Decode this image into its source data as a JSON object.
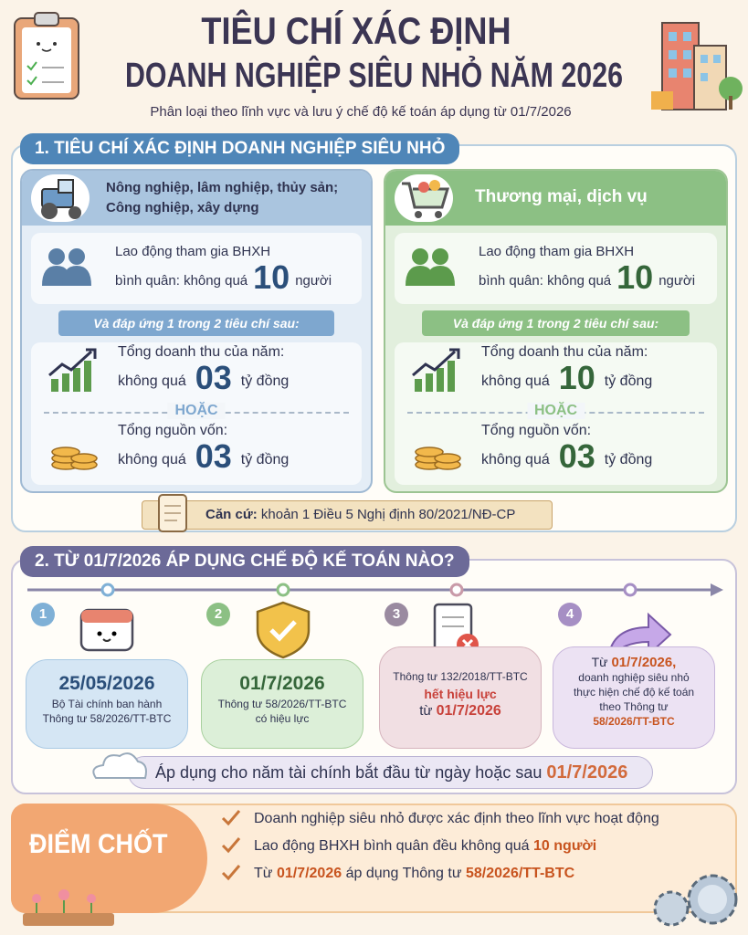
{
  "header": {
    "title_line1": "TIÊU CHÍ XÁC ĐỊNH",
    "title_line2": "DOANH NGHIỆP SIÊU NHỎ NĂM 2026",
    "subtitle": "Phân loại theo lĩnh vực và lưu ý chế độ kế toán áp dụng từ 01/7/2026"
  },
  "section1": {
    "title": "1. TIÊU CHÍ XÁC ĐỊNH DOANH NGHIỆP SIÊU NHỎ",
    "groups": [
      {
        "sector_lines": [
          "Nông nghiệp, lâm nghiệp, thủy sản;",
          "Công nghiệp, xây dựng"
        ],
        "labor_line1": "Lao động tham gia BHXH",
        "labor_prefix": "bình quân: không quá",
        "labor_value": "10",
        "labor_unit": "người",
        "condition": "Và đáp ứng 1 trong 2 tiêu chí sau:",
        "revenue_label": "Tổng doanh thu của năm:",
        "revenue_prefix": "không quá",
        "revenue_value": "03",
        "revenue_unit": "tỷ đồng",
        "or": "HOẶC",
        "capital_label": "Tổng nguồn vốn:",
        "capital_prefix": "không quá",
        "capital_value": "03",
        "capital_unit": "tỷ đồng"
      },
      {
        "sector_lines": [
          "Thương mại, dịch vụ"
        ],
        "labor_line1": "Lao động tham gia BHXH",
        "labor_prefix": "bình quân: không quá",
        "labor_value": "10",
        "labor_unit": "người",
        "condition": "Và đáp ứng 1 trong 2 tiêu chí sau:",
        "revenue_label": "Tổng doanh thu của năm:",
        "revenue_prefix": "không quá",
        "revenue_value": "10",
        "revenue_unit": "tỷ đồng",
        "or": "HOẶC",
        "capital_label": "Tổng nguồn vốn:",
        "capital_prefix": "không quá",
        "capital_value": "03",
        "capital_unit": "tỷ đồng"
      }
    ],
    "basis_label": "Căn cứ:",
    "basis_text": "khoản 1 Điều 5 Nghị định 80/2021/NĐ-CP"
  },
  "section2": {
    "title": "2. TỪ 01/7/2026 ÁP DỤNG CHẾ ĐỘ KẾ TOÁN NÀO?",
    "steps": [
      {
        "number": "1",
        "date": "25/05/2026",
        "lines": [
          "Bộ Tài chính ban hành",
          "Thông tư 58/2026/TT-BTC"
        ]
      },
      {
        "number": "2",
        "date": "01/7/2026",
        "lines": [
          "Thông tư 58/2026/TT-BTC",
          "có hiệu lực"
        ]
      },
      {
        "number": "3",
        "lines": [
          "Thông tư 132/2018/TT-BTC"
        ],
        "status": "hết hiệu lực",
        "from": "từ",
        "date": "01/7/2026"
      },
      {
        "number": "4",
        "from": "Từ",
        "date": "01/7/2026,",
        "lines": [
          "doanh nghiệp siêu nhỏ",
          "thực hiện chế độ kế toán",
          "theo Thông tư"
        ],
        "circular": "58/2026/TT-BTC"
      }
    ],
    "note": "Áp dụng cho năm tài chính bắt đầu từ ngày hoặc sau",
    "note_date": "01/7/2026"
  },
  "key_points": {
    "label": "ĐIỂM CHỐT",
    "item1": "Doanh nghiệp siêu nhỏ được xác định theo lĩnh vực hoạt động",
    "item2_text": "Lao động BHXH bình quân đều không quá",
    "item2_highlight": "10 người",
    "item3_from": "Từ",
    "item3_date": "01/7/2026",
    "item3_text": "áp dụng Thông tư",
    "item3_circular": "58/2026/TT-BTC"
  }
}
